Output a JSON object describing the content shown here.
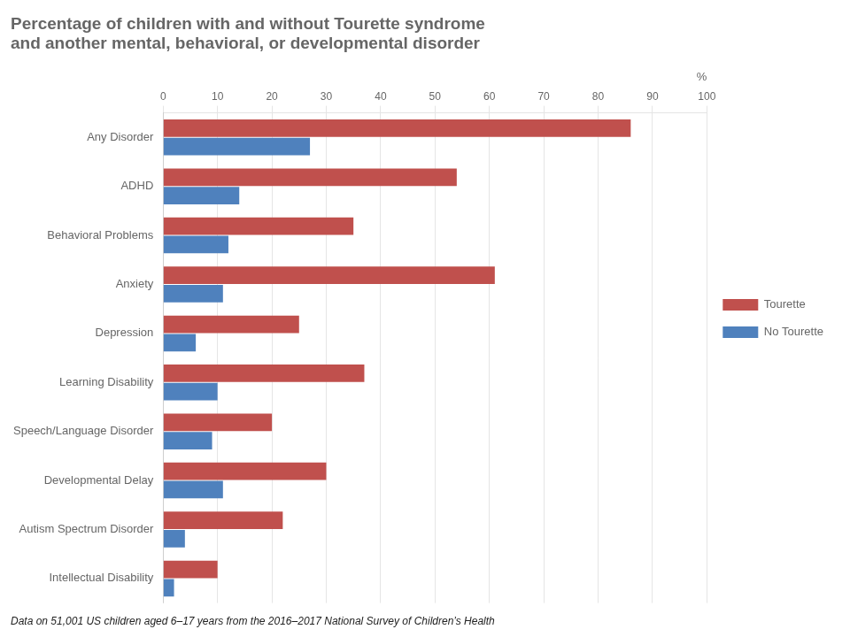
{
  "chart_data": {
    "type": "bar",
    "orientation": "horizontal",
    "title": "Percentage of children with and without Tourette syndrome\nand another mental, behavioral, or developmental disorder",
    "categories": [
      "Any Disorder",
      "ADHD",
      "Behavioral Problems",
      "Anxiety",
      "Depression",
      "Learning Disability",
      "Speech/Language Disorder",
      "Developmental Delay",
      "Autism Spectrum Disorder",
      "Intellectual Disability"
    ],
    "series": [
      {
        "name": "Tourette",
        "color": "#C0504D",
        "values": [
          86,
          54,
          35,
          61,
          25,
          37,
          20,
          30,
          22,
          10
        ]
      },
      {
        "name": "No Tourette",
        "color": "#4F81BD",
        "values": [
          27,
          14,
          12,
          11,
          6,
          10,
          9,
          11,
          4,
          2
        ]
      }
    ],
    "xlabel": "%",
    "xlim": [
      0,
      100
    ],
    "xticks": [
      0,
      10,
      20,
      30,
      40,
      50,
      60,
      70,
      80,
      90,
      100
    ],
    "grid": true,
    "legend": "right",
    "footnote": "Data on 51,001 US children aged 6–17 years from the 2016–2017 National Survey of Children’s Health"
  }
}
